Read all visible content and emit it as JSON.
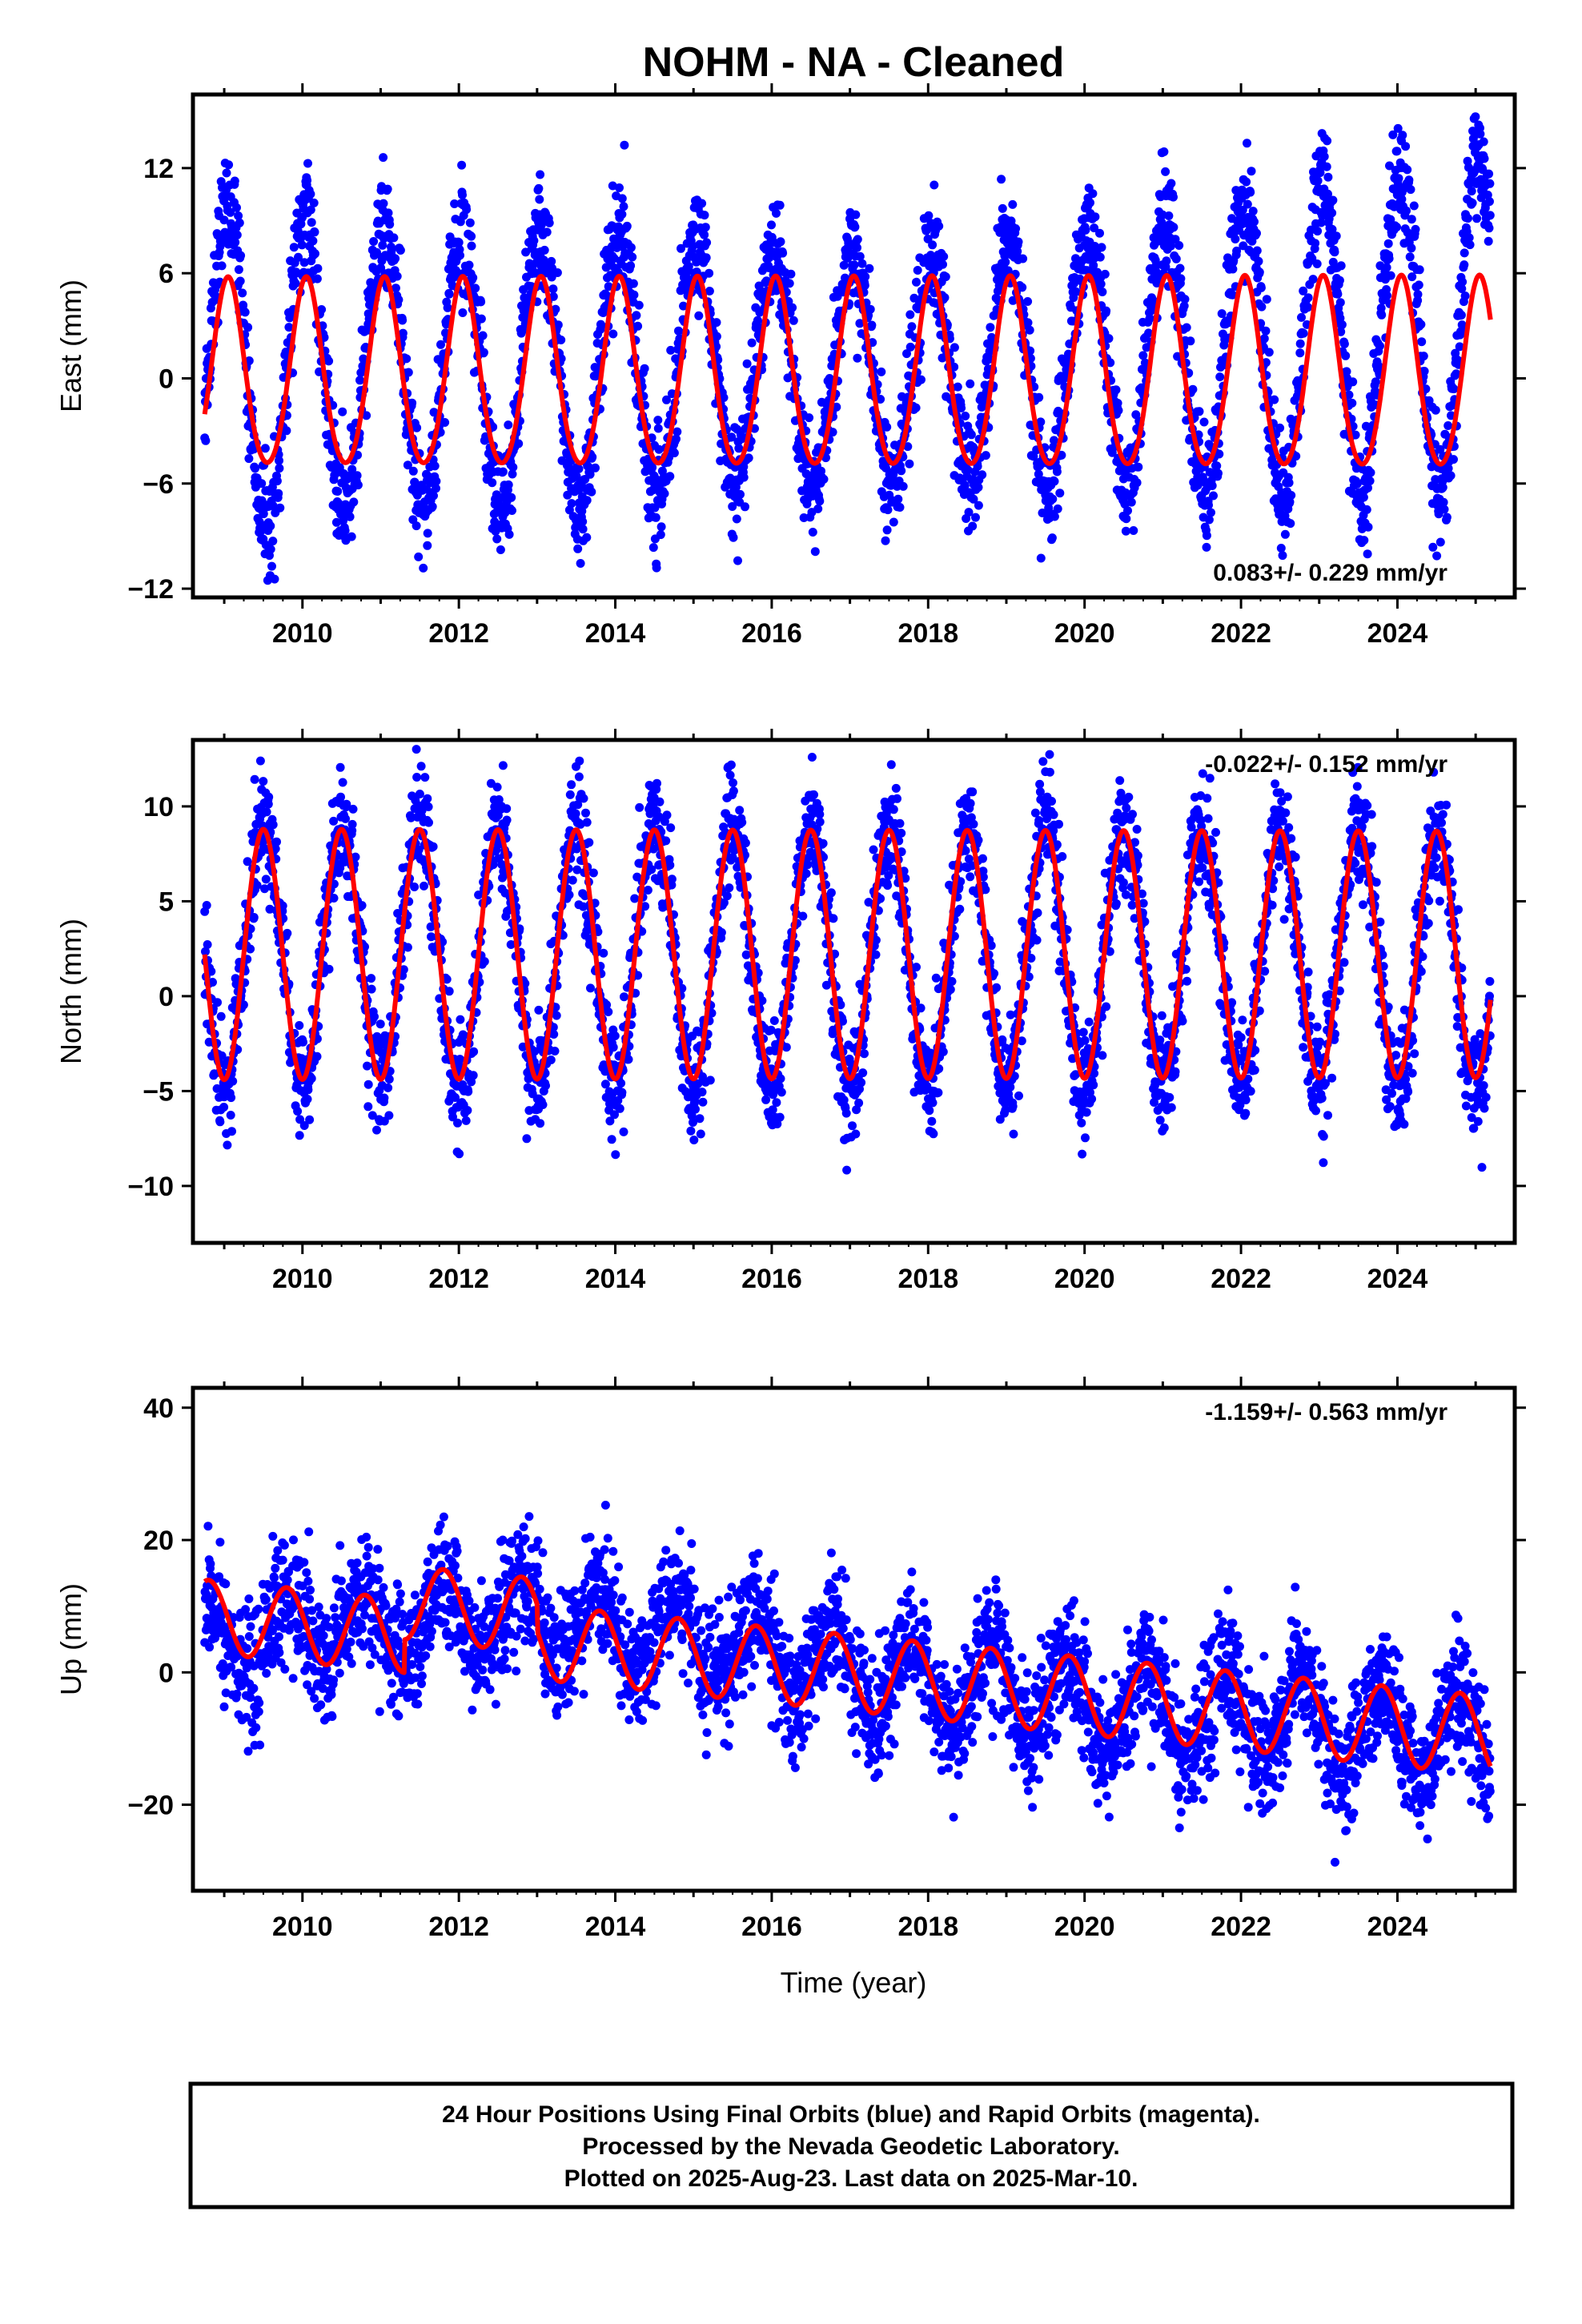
{
  "title": "NOHM  - NA - Cleaned",
  "xlabel": "Time (year)",
  "caption": [
    "24 Hour Positions Using Final Orbits (blue) and Rapid Orbits (magenta).",
    "Processed by the Nevada Geodetic Laboratory.",
    "Plotted on 2025-Aug-23. Last data on 2025-Mar-10."
  ],
  "colors": {
    "data": "#0000ff",
    "model": "#ff0000",
    "axes": "#000000"
  },
  "chart_data": [
    {
      "type": "scatter",
      "ylabel": "East (mm)",
      "rate_label": "0.083+/- 0.229 mm/yr",
      "rate_position": "bottom-right",
      "xlim": [
        2008.6,
        2025.5
      ],
      "ylim": [
        -12.5,
        16.2
      ],
      "xticks": [
        2010,
        2012,
        2014,
        2016,
        2018,
        2020,
        2022,
        2024
      ],
      "yticks": [
        -12,
        -6,
        0,
        6,
        12
      ],
      "ytick_labels": [
        "−12",
        "−6",
        "0",
        "6",
        "12"
      ],
      "series": [
        {
          "type": "scatter",
          "color": "#0000ff",
          "x_start": 2008.75,
          "x_end": 2025.19,
          "model": {
            "annual_amp": [
              9.0,
              6.2,
              6.5,
              9.5
            ],
            "annual_amp_years": [
              2008.75,
              2017.9,
              2018.3,
              2025.19
            ],
            "annual_peak_frac": 0.04,
            "noise_sd": 1.6,
            "offset": [
              0.5,
              0.5,
              0.5,
              3.0
            ]
          }
        },
        {
          "type": "line",
          "color": "#ff0000",
          "model": {
            "offset": 0.0,
            "trend": 0.0,
            "annual_amp_start": 5.3,
            "annual_amp_end": 5.4,
            "annual_peak_frac": 0.05,
            "semi_amp": 0.5,
            "x_start": 2008.75,
            "x_end": 2025.19
          }
        }
      ]
    },
    {
      "type": "scatter",
      "ylabel": "North (mm)",
      "rate_label": "-0.022+/- 0.152 mm/yr",
      "rate_position": "top-right",
      "xlim": [
        2008.6,
        2025.5
      ],
      "ylim": [
        -13.0,
        13.5
      ],
      "xticks": [
        2010,
        2012,
        2014,
        2016,
        2018,
        2020,
        2022,
        2024
      ],
      "yticks": [
        -10,
        -5,
        0,
        5,
        10
      ],
      "ytick_labels": [
        "−10",
        "−5",
        "0",
        "5",
        "10"
      ],
      "series": [
        {
          "type": "scatter",
          "color": "#0000ff",
          "x_start": 2008.75,
          "x_end": 2025.19,
          "model": {
            "annual_amp": [
              6.8,
              6.8
            ],
            "annual_amp_years": [
              2008.75,
              2025.19
            ],
            "annual_peak_frac": 0.5,
            "noise_sd": 1.5,
            "offset": [
              2.2,
              2.0
            ]
          }
        },
        {
          "type": "line",
          "color": "#ff0000",
          "model": {
            "offset": 2.2,
            "trend": 0.0,
            "annual_amp_start": 6.6,
            "annual_amp_end": 6.5,
            "annual_peak_frac": 0.5,
            "semi_amp": 0.0,
            "x_start": 2008.75,
            "x_end": 2025.19
          }
        }
      ]
    },
    {
      "type": "scatter",
      "ylabel": "Up (mm)",
      "rate_label": "-1.159+/- 0.563 mm/yr",
      "rate_position": "top-right",
      "xlim": [
        2008.6,
        2025.5
      ],
      "ylim": [
        -33.0,
        43.0
      ],
      "xticks": [
        2010,
        2012,
        2014,
        2016,
        2018,
        2020,
        2022,
        2024
      ],
      "yticks": [
        -20,
        0,
        20,
        40
      ],
      "ytick_labels": [
        "−20",
        "0",
        "20",
        "40"
      ],
      "series": [
        {
          "type": "scatter",
          "color": "#0000ff",
          "x_start": 2008.75,
          "x_end": 2025.19,
          "model": {
            "annual_amp": [
              5.5,
              7.0
            ],
            "annual_amp_years": [
              2008.75,
              2025.19
            ],
            "annual_peak_frac": 0.8,
            "noise_sd": 4.5,
            "offset": [
              5.0,
              9.0,
              5.0,
              -2.0,
              -6.0,
              -10.0
            ],
            "offset_years": [
              2008.75,
              2012.8,
              2015.0,
              2018.0,
              2021.5,
              2025.19
            ]
          }
        },
        {
          "type": "line",
          "color": "#ff0000",
          "model": {
            "offset": 8.5,
            "trend": -1.159,
            "annual_amp_start": 5.5,
            "annual_amp_end": 6.0,
            "annual_peak_frac": 0.8,
            "semi_amp": 0.0,
            "x_start": 2008.75,
            "x_end": 2025.19,
            "step_years": [
              2011.3,
              2013.0
            ],
            "step_sizes": [
              5.0,
              -4.0
            ]
          }
        }
      ]
    }
  ]
}
